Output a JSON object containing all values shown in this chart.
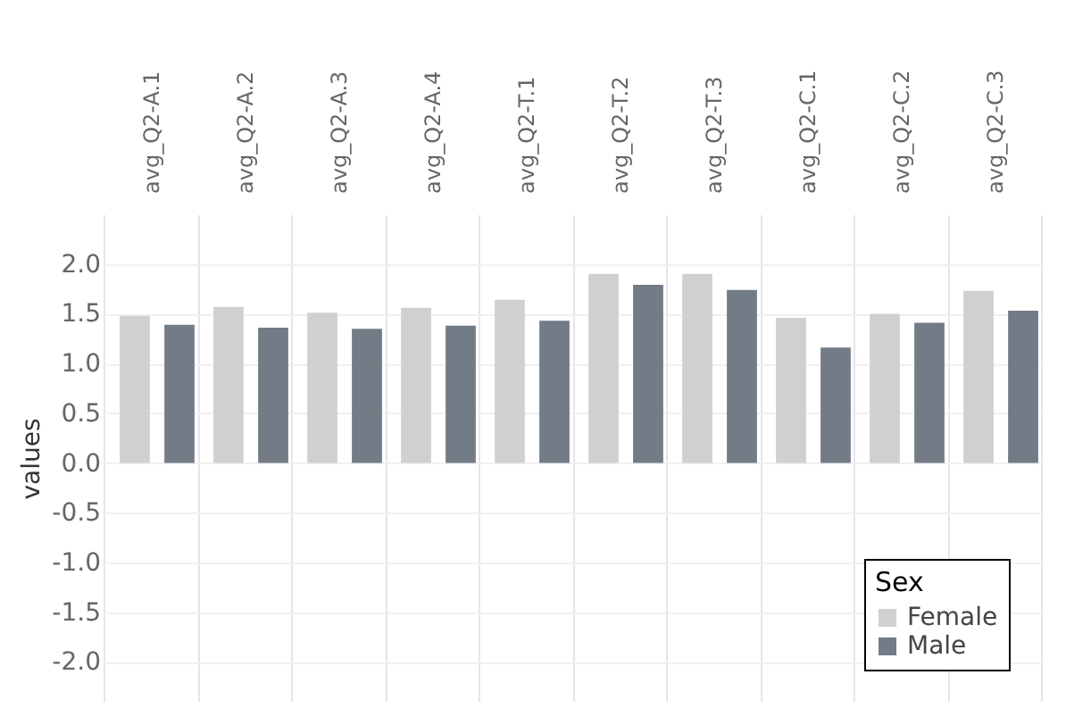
{
  "chart_data": {
    "type": "bar",
    "ylabel": "values",
    "legend_title": "Sex",
    "categories": [
      "avg_Q2-A.1",
      "avg_Q2-A.2",
      "avg_Q2-A.3",
      "avg_Q2-A.4",
      "avg_Q2-T.1",
      "avg_Q2-T.2",
      "avg_Q2-T.3",
      "avg_Q2-C.1",
      "avg_Q2-C.2",
      "avg_Q2-C.3"
    ],
    "series": [
      {
        "name": "Female",
        "color": "#d0d0d0",
        "values": [
          1.48,
          1.57,
          1.51,
          1.56,
          1.64,
          1.9,
          1.9,
          1.46,
          1.5,
          1.73
        ]
      },
      {
        "name": "Male",
        "color": "#737b86",
        "values": [
          1.39,
          1.36,
          1.35,
          1.38,
          1.43,
          1.79,
          1.74,
          1.16,
          1.41,
          1.53
        ]
      }
    ],
    "ylim": [
      -2.4,
      2.5
    ],
    "yticks": [
      {
        "value": -2,
        "label": "-2.0"
      },
      {
        "value": -1.5,
        "label": "-1.5"
      },
      {
        "value": -1,
        "label": "-1.0"
      },
      {
        "value": -0.5,
        "label": "-0.5"
      },
      {
        "value": 0,
        "label": "0.0"
      },
      {
        "value": 0.5,
        "label": "0.5"
      },
      {
        "value": 1,
        "label": "1.0"
      },
      {
        "value": 1.5,
        "label": "1.5"
      },
      {
        "value": 2,
        "label": "2.0"
      }
    ],
    "grid": true,
    "legend": "bottom right"
  }
}
